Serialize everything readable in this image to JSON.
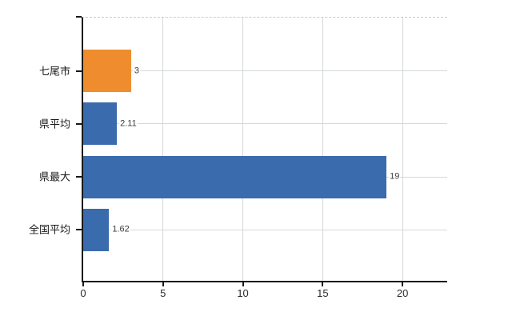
{
  "chart_data": {
    "type": "bar",
    "orientation": "horizontal",
    "title": "",
    "xlabel": "",
    "ylabel": "",
    "categories": [
      "七尾市",
      "県平均",
      "県最大",
      "全国平均"
    ],
    "values": [
      3,
      2.11,
      19,
      1.62
    ],
    "value_labels": [
      "3",
      "2.11",
      "19",
      "1.62"
    ],
    "bar_colors": [
      "#EF8D2E",
      "#3A6BAD",
      "#3A6BAD",
      "#3A6BAD"
    ],
    "x_ticks": [
      "0",
      "5",
      "10",
      "15",
      "20"
    ],
    "x_tick_values": [
      0,
      5,
      10,
      15,
      20
    ],
    "xlim": [
      0,
      22.8
    ],
    "grid": true,
    "legend": false,
    "colors": {
      "highlight_bar": "#EF8D2E",
      "default_bar": "#3A6BAD",
      "gridline": "#d5dad5",
      "top_border_dashed": "#c9c9c9",
      "axis": "#1a1a1a",
      "value_text": "#3d3d3d",
      "label_text": "#1a1a1a"
    }
  }
}
